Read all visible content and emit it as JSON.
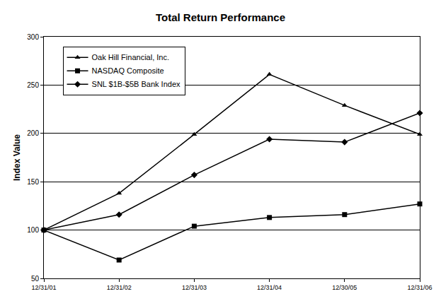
{
  "chart_data": {
    "type": "line",
    "title": "Total Return Performance",
    "y_label": "Index Value",
    "categories": [
      "12/31/01",
      "12/31/02",
      "12/31/03",
      "12/31/04",
      "12/30/05",
      "12/31/06"
    ],
    "series": [
      {
        "name": "Oak Hill Financial, Inc.",
        "color": "#000000",
        "marker": "triangle-up",
        "values": [
          100,
          138,
          199,
          261,
          229,
          199
        ]
      },
      {
        "name": "NASDAQ Composite",
        "color": "#000000",
        "marker": "square",
        "values": [
          100,
          69,
          104,
          113,
          116,
          127
        ]
      },
      {
        "name": "SNL $1B-$5B Bank Index",
        "color": "#000000",
        "marker": "diamond",
        "values": [
          100,
          116,
          157,
          194,
          191,
          221
        ]
      }
    ],
    "ylim": [
      50,
      300
    ],
    "yticks": [
      50,
      100,
      150,
      200,
      250,
      300
    ],
    "grid": true,
    "legend": "upper left"
  }
}
